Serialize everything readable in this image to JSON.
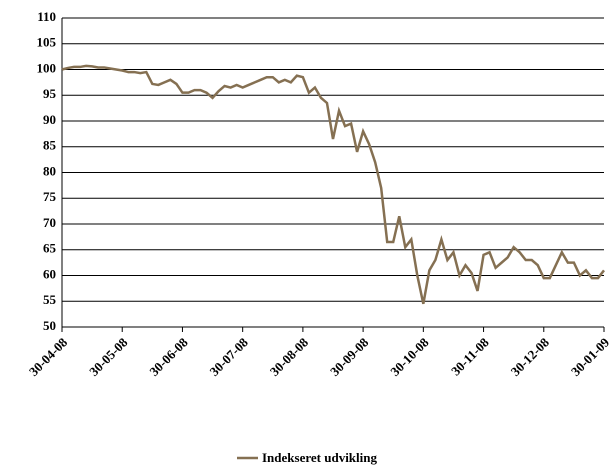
{
  "chart_data": {
    "type": "line",
    "categories": [
      "30-04-08",
      null,
      null,
      null,
      null,
      null,
      null,
      null,
      null,
      null,
      "30-05-08",
      null,
      null,
      null,
      null,
      null,
      null,
      null,
      null,
      null,
      "30-06-08",
      null,
      null,
      null,
      null,
      null,
      null,
      null,
      null,
      null,
      "30-07-08",
      null,
      null,
      null,
      null,
      null,
      null,
      null,
      null,
      null,
      "30-08-08",
      null,
      null,
      null,
      null,
      null,
      null,
      null,
      null,
      null,
      "30-09-08",
      null,
      null,
      null,
      null,
      null,
      null,
      null,
      null,
      null,
      "30-10-08",
      null,
      null,
      null,
      null,
      null,
      null,
      null,
      null,
      null,
      "30-11-08",
      null,
      null,
      null,
      null,
      null,
      null,
      null,
      null,
      null,
      "30-12-08",
      null,
      null,
      null,
      null,
      null,
      null,
      null,
      null,
      null,
      "30-01-09"
    ],
    "series": [
      {
        "name": "Indekseret udvikling",
        "color": "#857052",
        "values": [
          100,
          100.3,
          100.5,
          100.5,
          100.7,
          100.6,
          100.4,
          100.4,
          100.2,
          100,
          99.8,
          99.5,
          99.5,
          99.3,
          99.5,
          97.2,
          97,
          97.5,
          98,
          97.2,
          95.5,
          95.5,
          96,
          96,
          95.5,
          94.5,
          95.8,
          96.8,
          96.5,
          97,
          96.5,
          97,
          97.5,
          98,
          98.5,
          98.5,
          97.5,
          98,
          97.5,
          98.8,
          98.5,
          95.5,
          96.5,
          94.5,
          93.5,
          86.5,
          92,
          89,
          89.5,
          84,
          88,
          85.5,
          82,
          77,
          66.5,
          66.5,
          71.5,
          65.5,
          67,
          60,
          54.5,
          61,
          63,
          67,
          63,
          64.5,
          60,
          62,
          60.5,
          57,
          64,
          64.5,
          61.5,
          62.5,
          63.5,
          65.5,
          64.5,
          63,
          63,
          62,
          59.5,
          59.5,
          62,
          64.5,
          62.5,
          62.5,
          60,
          61,
          59.5,
          59.5,
          61
        ]
      }
    ],
    "ylim": [
      50,
      110
    ],
    "yticks": [
      50,
      55,
      60,
      65,
      70,
      75,
      80,
      85,
      90,
      95,
      100,
      105,
      110
    ],
    "grid": true,
    "legend": "bottom"
  }
}
